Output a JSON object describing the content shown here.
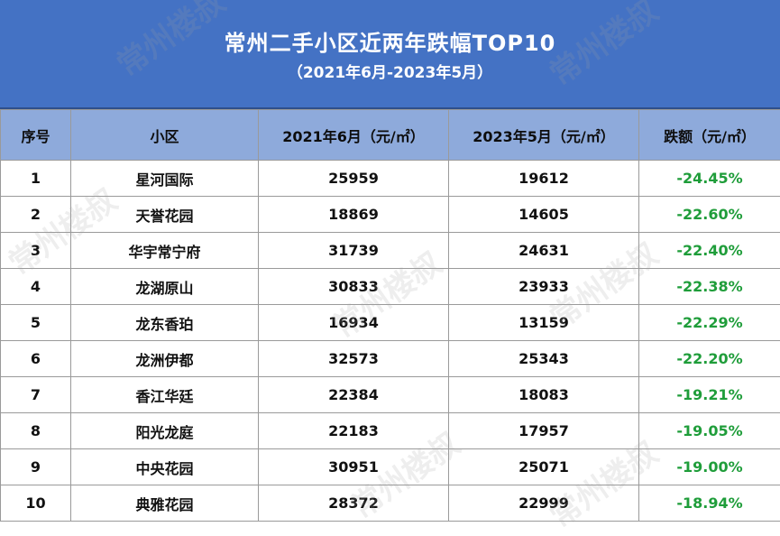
{
  "title": "常州二手小区近两年跌幅TOP10",
  "subtitle": "（2021年6月-2023年5月）",
  "watermark": "常州楼叔",
  "colors": {
    "header_band": "#4472c4",
    "column_header": "#8eaadb",
    "drop_text": "#1f9d3a"
  },
  "chart_data": {
    "type": "table",
    "title": "常州二手小区近两年跌幅TOP10",
    "subtitle": "（2021年6月-2023年5月）",
    "columns": [
      "序号",
      "小区",
      "2021年6月（元/㎡）",
      "2023年5月（元/㎡）",
      "跌额（元/㎡）"
    ],
    "rows": [
      [
        "1",
        "星河国际",
        "25959",
        "19612",
        "-24.45%"
      ],
      [
        "2",
        "天誉花园",
        "18869",
        "14605",
        "-22.60%"
      ],
      [
        "3",
        "华宇常宁府",
        "31739",
        "24631",
        "-22.40%"
      ],
      [
        "4",
        "龙湖原山",
        "30833",
        "23933",
        "-22.38%"
      ],
      [
        "5",
        "龙东香珀",
        "16934",
        "13159",
        "-22.29%"
      ],
      [
        "6",
        "龙洲伊都",
        "32573",
        "25343",
        "-22.20%"
      ],
      [
        "7",
        "香江华廷",
        "22384",
        "18083",
        "-19.21%"
      ],
      [
        "8",
        "阳光龙庭",
        "22183",
        "17957",
        "-19.05%"
      ],
      [
        "9",
        "中央花园",
        "30951",
        "25071",
        "-19.00%"
      ],
      [
        "10",
        "典雅花园",
        "28372",
        "22999",
        "-18.94%"
      ]
    ]
  }
}
